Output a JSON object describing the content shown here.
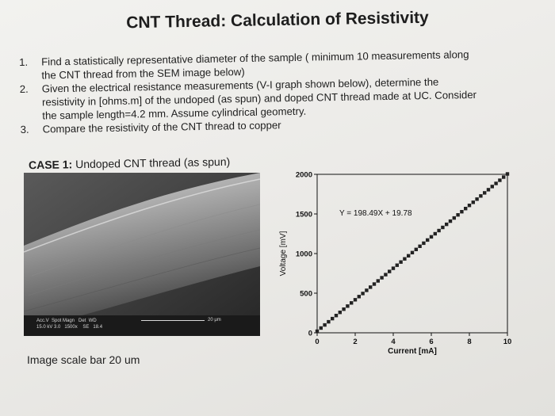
{
  "title": "CNT Thread: Calculation of Resistivity",
  "questions": [
    {
      "number": "1.",
      "line1": "Find a statistically representative diameter of the sample ( minimum 10 measurements along",
      "line2": "the CNT thread from the SEM image below)"
    },
    {
      "number": "2.",
      "line1": "Given the electrical resistance measurements (V-I graph shown below), determine the",
      "line2": "resistivity in [ohms.m] of the undoped (as spun) and doped CNT thread made at UC. Consider",
      "line3": "the sample length=4.2 mm. Assume cylindrical geometry."
    },
    {
      "number": "3.",
      "line1": "Compare the resistivity of the CNT thread to copper"
    }
  ],
  "case": {
    "label": "CASE 1:",
    "text": "Undoped CNT thread (as spun)"
  },
  "sem": {
    "meta_line1": "Acc.V  Spot Magn   Det  WD",
    "meta_line2": "15.0 kV 3.0   1500x    SE   18.4",
    "scale_label": "20 μm"
  },
  "caption": "Image scale bar 20 um",
  "chart_data": {
    "type": "scatter",
    "xlabel": "Current [mA]",
    "ylabel": "Voltage [mV]",
    "xlim": [
      0,
      10
    ],
    "ylim": [
      0,
      2000
    ],
    "xticks": [
      "0",
      "2",
      "4",
      "6",
      "8",
      "10"
    ],
    "yticks": [
      "0",
      "500",
      "1000",
      "1500",
      "2000"
    ],
    "equation": "Y = 198.49X + 19.78",
    "fit": {
      "slope": 198.49,
      "intercept": 19.78
    },
    "x": [
      0,
      0.2,
      0.4,
      0.6,
      0.8,
      1,
      1.2,
      1.4,
      1.6,
      1.8,
      2,
      2.2,
      2.4,
      2.6,
      2.8,
      3,
      3.2,
      3.4,
      3.6,
      3.8,
      4,
      4.2,
      4.4,
      4.6,
      4.8,
      5,
      5.2,
      5.4,
      5.6,
      5.8,
      6,
      6.2,
      6.4,
      6.6,
      6.8,
      7,
      7.2,
      7.4,
      7.6,
      7.8,
      8,
      8.2,
      8.4,
      8.6,
      8.8,
      9,
      9.2,
      9.4,
      9.6,
      9.8,
      10
    ],
    "y": [
      20,
      60,
      99,
      139,
      179,
      218,
      258,
      298,
      337,
      377,
      417,
      457,
      496,
      536,
      576,
      615,
      655,
      695,
      734,
      774,
      814,
      853,
      893,
      933,
      972,
      1012,
      1052,
      1092,
      1131,
      1171,
      1211,
      1250,
      1290,
      1330,
      1369,
      1409,
      1449,
      1488,
      1528,
      1568,
      1608,
      1647,
      1687,
      1727,
      1766,
      1806,
      1846,
      1885,
      1925,
      1965,
      2005
    ],
    "grid": false,
    "marker_color": "#222222"
  }
}
